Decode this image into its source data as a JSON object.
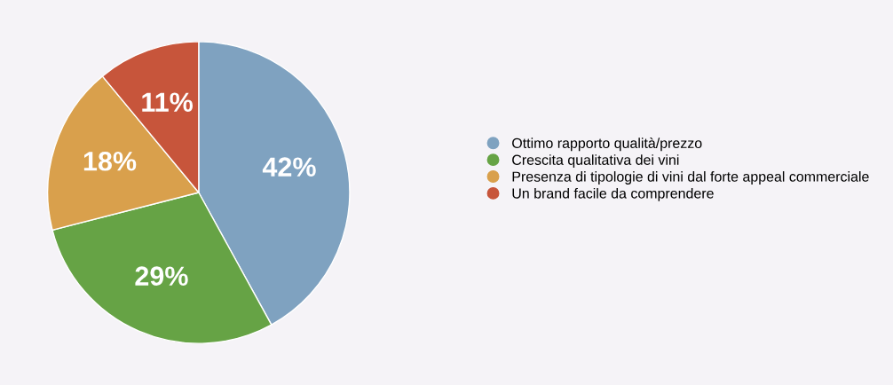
{
  "chart_data": {
    "type": "pie",
    "categories": [
      "Ottimo rapporto qualità/prezzo",
      "Crescita qualitativa dei vini",
      "Presenza di tipologie di vini dal forte appeal commerciale",
      "Un brand facile da comprendere"
    ],
    "values": [
      42,
      29,
      18,
      11
    ],
    "colors": [
      "#7fa2c0",
      "#66a345",
      "#d9a04c",
      "#c7553b"
    ],
    "value_labels": [
      "42%",
      "29%",
      "18%",
      "11%"
    ],
    "legend": "right"
  }
}
